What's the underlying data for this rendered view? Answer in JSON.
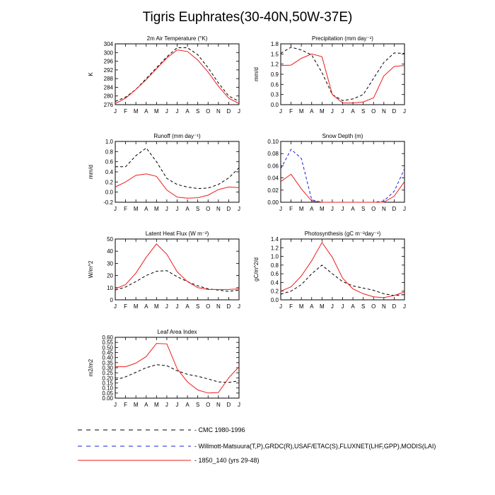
{
  "figure": {
    "title": "Tigris Euphrates(30-40N,50W-37E)"
  },
  "month_labels": [
    "J",
    "F",
    "M",
    "A",
    "M",
    "J",
    "J",
    "A",
    "S",
    "O",
    "N",
    "D",
    "J"
  ],
  "legend": [
    {
      "name": "CMC 1980-1996",
      "color": "#000000",
      "dash": "6,6"
    },
    {
      "name": "Willmott-Matsuura(T,P),GRDC(R),USAF/ETAC(S),FLUXNET(LHF,GPP),MODIS(LAI)",
      "color": "#1f1fd6",
      "dash": "6,6"
    },
    {
      "name": "1850_140 (yrs 29-48)",
      "color": "#ee1c1c",
      "dash": ""
    }
  ],
  "chart_data": [
    {
      "type": "line",
      "title": "2m Air Temperature (°K)",
      "ylabel": "K",
      "ylim": [
        276,
        304
      ],
      "yticks": [
        276,
        280,
        284,
        288,
        292,
        296,
        300,
        304
      ],
      "ytick_labels": [
        "276",
        "280",
        "284",
        "288",
        "292",
        "296",
        "300",
        "304"
      ],
      "x": [
        0,
        1,
        2,
        3,
        4,
        5,
        6,
        7,
        8,
        9,
        10,
        11,
        12
      ],
      "series": [
        {
          "key": "obs",
          "color": "#000000",
          "dash": "4,3",
          "values": [
            277.5,
            279.5,
            283,
            288,
            293,
            298,
            302.2,
            302.2,
            299,
            293,
            286,
            280,
            277.5
          ]
        },
        {
          "key": "model",
          "color": "#ee1c1c",
          "dash": "",
          "values": [
            276.5,
            279,
            283,
            287.5,
            292.5,
            297.5,
            301.2,
            300.5,
            296.5,
            291,
            284.5,
            279,
            276.5
          ]
        }
      ]
    },
    {
      "type": "line",
      "title": "Precipitation (mm day⁻¹)",
      "ylabel": "mm/d",
      "ylim": [
        0,
        1.8
      ],
      "yticks": [
        0,
        0.3,
        0.6,
        0.9,
        1.2,
        1.5,
        1.8
      ],
      "ytick_labels": [
        "0.0",
        "0.3",
        "0.6",
        "0.9",
        "1.2",
        "1.5",
        "1.8"
      ],
      "x": [
        0,
        1,
        2,
        3,
        4,
        5,
        6,
        7,
        8,
        9,
        10,
        11,
        12
      ],
      "series": [
        {
          "key": "obs",
          "color": "#000000",
          "dash": "4,3",
          "values": [
            1.52,
            1.7,
            1.62,
            1.47,
            0.95,
            0.3,
            0.12,
            0.17,
            0.3,
            0.78,
            1.25,
            1.53,
            1.52
          ]
        },
        {
          "key": "model",
          "color": "#ee1c1c",
          "dash": "",
          "values": [
            1.16,
            1.17,
            1.37,
            1.5,
            1.42,
            0.3,
            0.05,
            0.05,
            0.08,
            0.2,
            0.85,
            1.13,
            1.16
          ]
        }
      ]
    },
    {
      "type": "line",
      "title": "Runoff (mm day⁻¹)",
      "ylabel": "mm/d",
      "ylim": [
        -0.2,
        1.0
      ],
      "yticks": [
        -0.2,
        0,
        0.2,
        0.4,
        0.6,
        0.8,
        1.0
      ],
      "ytick_labels": [
        "-0.2",
        "0.0",
        "0.2",
        "0.4",
        "0.6",
        "0.8",
        "1.0"
      ],
      "x": [
        0,
        1,
        2,
        3,
        4,
        5,
        6,
        7,
        8,
        9,
        10,
        11,
        12
      ],
      "series": [
        {
          "key": "obs",
          "color": "#000000",
          "dash": "4,3",
          "values": [
            0.5,
            0.5,
            0.72,
            0.87,
            0.6,
            0.27,
            0.15,
            0.1,
            0.07,
            0.08,
            0.15,
            0.28,
            0.48
          ]
        },
        {
          "key": "model",
          "color": "#ee1c1c",
          "dash": "",
          "values": [
            0.1,
            0.2,
            0.33,
            0.36,
            0.31,
            0.04,
            -0.1,
            -0.12,
            -0.11,
            -0.06,
            0.05,
            0.1,
            0.09
          ]
        }
      ]
    },
    {
      "type": "line",
      "title": "Snow Depth (m)",
      "ylabel": "",
      "ylim": [
        0,
        0.1
      ],
      "yticks": [
        0,
        0.02,
        0.04,
        0.06,
        0.08,
        0.1
      ],
      "ytick_labels": [
        "0.00",
        "0.02",
        "0.04",
        "0.06",
        "0.08",
        "0.10"
      ],
      "x": [
        0,
        1,
        2,
        3,
        4,
        5,
        6,
        7,
        8,
        9,
        10,
        11,
        12
      ],
      "series": [
        {
          "key": "obs",
          "color": "#1f1fd6",
          "dash": "4,3",
          "values": [
            0.055,
            0.087,
            0.072,
            0.004,
            0,
            0,
            0,
            0,
            0,
            0,
            0.002,
            0.018,
            0.055
          ]
        },
        {
          "key": "model",
          "color": "#ee1c1c",
          "dash": "",
          "values": [
            0.034,
            0.046,
            0.022,
            0.002,
            0,
            0,
            0,
            0,
            0,
            0,
            0,
            0.01,
            0.034
          ]
        }
      ]
    },
    {
      "type": "line",
      "title": "Latent Heat Flux (W m⁻²)",
      "ylabel": "W/m^2",
      "ylim": [
        0,
        50
      ],
      "yticks": [
        0,
        10,
        20,
        30,
        40,
        50
      ],
      "ytick_labels": [
        "0",
        "10",
        "20",
        "30",
        "40",
        "50"
      ],
      "x": [
        0,
        1,
        2,
        3,
        4,
        5,
        6,
        7,
        8,
        9,
        10,
        11,
        12
      ],
      "series": [
        {
          "key": "obs",
          "color": "#000000",
          "dash": "4,3",
          "values": [
            8,
            10.5,
            15,
            20,
            23.5,
            24,
            19,
            15,
            11.5,
            9,
            8,
            7,
            8
          ]
        },
        {
          "key": "model",
          "color": "#ee1c1c",
          "dash": "",
          "values": [
            9,
            12.5,
            22,
            35,
            46,
            37.5,
            23,
            15,
            10,
            8.5,
            8.5,
            8.5,
            9
          ]
        }
      ]
    },
    {
      "type": "line",
      "title": "Photosynthesis (gC m⁻²day⁻¹)",
      "ylabel": "gC/m^2/d",
      "ylim": [
        0,
        1.4
      ],
      "yticks": [
        0,
        0.2,
        0.4,
        0.6,
        0.8,
        1.0,
        1.2,
        1.4
      ],
      "ytick_labels": [
        "0.0",
        "0.2",
        "0.4",
        "0.6",
        "0.8",
        "1.0",
        "1.2",
        "1.4"
      ],
      "x": [
        0,
        1,
        2,
        3,
        4,
        5,
        6,
        7,
        8,
        9,
        10,
        11,
        12
      ],
      "series": [
        {
          "key": "obs",
          "color": "#000000",
          "dash": "4,3",
          "values": [
            0.13,
            0.2,
            0.35,
            0.6,
            0.8,
            0.6,
            0.42,
            0.32,
            0.27,
            0.22,
            0.14,
            0.1,
            0.12
          ]
        },
        {
          "key": "model",
          "color": "#ee1c1c",
          "dash": "",
          "values": [
            0.2,
            0.3,
            0.55,
            0.9,
            1.32,
            0.98,
            0.5,
            0.25,
            0.14,
            0.07,
            0.05,
            0.1,
            0.18
          ]
        }
      ]
    },
    {
      "type": "line",
      "title": "Leaf Area Index",
      "ylabel": "m2/m2",
      "ylim": [
        0,
        0.6
      ],
      "yticks": [
        0,
        0.05,
        0.1,
        0.15,
        0.2,
        0.25,
        0.3,
        0.35,
        0.4,
        0.45,
        0.5,
        0.55,
        0.6
      ],
      "ytick_labels": [
        "0.00",
        "0.05",
        "0.10",
        "0.15",
        "0.20",
        "0.25",
        "0.30",
        "0.35",
        "0.40",
        "0.45",
        "0.50",
        "0.55",
        "0.60"
      ],
      "x": [
        0,
        1,
        2,
        3,
        4,
        5,
        6,
        7,
        8,
        9,
        10,
        11,
        12
      ],
      "series": [
        {
          "key": "obs",
          "color": "#000000",
          "dash": "4,3",
          "values": [
            0.18,
            0.21,
            0.255,
            0.3,
            0.33,
            0.32,
            0.27,
            0.235,
            0.215,
            0.19,
            0.16,
            0.155,
            0.17
          ]
        },
        {
          "key": "model",
          "color": "#ee1c1c",
          "dash": "",
          "values": [
            0.31,
            0.31,
            0.345,
            0.41,
            0.54,
            0.535,
            0.29,
            0.16,
            0.08,
            0.05,
            0.055,
            0.2,
            0.31
          ]
        }
      ]
    }
  ]
}
